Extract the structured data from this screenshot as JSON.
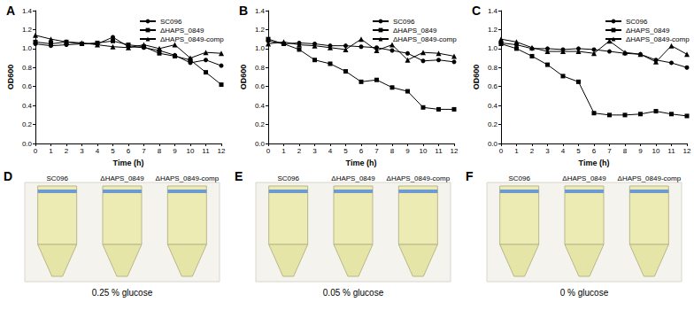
{
  "chart_data": [
    {
      "type": "line",
      "title": "A",
      "xlabel": "Time (h)",
      "ylabel": "OD600",
      "x": [
        0,
        1,
        2,
        3,
        4,
        5,
        6,
        7,
        8,
        9,
        10,
        11,
        12
      ],
      "xlim": [
        0,
        12
      ],
      "xticks": [
        0,
        1,
        2,
        3,
        4,
        5,
        6,
        7,
        8,
        9,
        10,
        11,
        12
      ],
      "ylim": [
        0,
        1.4
      ],
      "yticks": [
        {
          "value": 0,
          "label": "0.0"
        },
        0.2,
        0.4,
        0.6,
        0.8,
        {
          "value": 1,
          "label": "1.0"
        },
        1.2,
        1.4
      ],
      "legend": "upper right",
      "series": [
        {
          "name": "SC096",
          "color": "#000000",
          "marker": "circle",
          "values": [
            1.05,
            1.03,
            1.04,
            1.05,
            1.05,
            1.12,
            1.02,
            1.01,
            0.98,
            0.93,
            0.85,
            0.88,
            0.82
          ]
        },
        {
          "name": "ΔHAPS_0849",
          "color": "#000000",
          "marker": "square",
          "values": [
            1.07,
            1.05,
            1.07,
            1.05,
            1.06,
            1.08,
            1.04,
            1.02,
            0.95,
            0.92,
            0.88,
            0.75,
            0.62
          ]
        },
        {
          "name": "ΔHAPS_0849-comp",
          "color": "#000000",
          "marker": "triangle",
          "values": [
            1.14,
            1.1,
            1.07,
            1.06,
            1.04,
            1.02,
            1.01,
            1.04,
            1.0,
            1.04,
            0.9,
            0.96,
            0.95
          ]
        }
      ]
    },
    {
      "type": "line",
      "title": "B",
      "xlabel": "Time (h)",
      "ylabel": "OD600",
      "x": [
        0,
        1,
        2,
        3,
        4,
        5,
        6,
        7,
        8,
        9,
        10,
        11,
        12
      ],
      "xlim": [
        0,
        12
      ],
      "xticks": [
        0,
        1,
        2,
        3,
        4,
        5,
        6,
        7,
        8,
        9,
        10,
        11,
        12
      ],
      "ylim": [
        0,
        1.4
      ],
      "yticks": [
        {
          "value": 0,
          "label": "0.0"
        },
        0.2,
        0.4,
        0.6,
        0.8,
        {
          "value": 1,
          "label": "1.0"
        },
        1.2,
        1.4
      ],
      "legend": "upper right",
      "series": [
        {
          "name": "SC096",
          "color": "#000000",
          "marker": "circle",
          "values": [
            1.08,
            1.05,
            1.06,
            1.05,
            1.03,
            1.03,
            1.02,
            1.01,
            0.98,
            0.95,
            0.87,
            0.88,
            0.86
          ]
        },
        {
          "name": "ΔHAPS_0849",
          "color": "#000000",
          "marker": "square",
          "values": [
            1.1,
            1.05,
            0.99,
            0.88,
            0.84,
            0.76,
            0.65,
            0.67,
            0.59,
            0.55,
            0.38,
            0.36,
            0.36
          ]
        },
        {
          "name": "ΔHAPS_0849-comp",
          "color": "#000000",
          "marker": "triangle",
          "values": [
            1.05,
            1.07,
            1.04,
            1.03,
            1.01,
            0.99,
            1.1,
            0.98,
            1.04,
            0.88,
            0.96,
            0.95,
            0.92
          ]
        }
      ]
    },
    {
      "type": "line",
      "title": "C",
      "xlabel": "Time (h)",
      "ylabel": "OD600",
      "x": [
        0,
        1,
        2,
        3,
        4,
        5,
        6,
        7,
        8,
        9,
        10,
        11,
        12
      ],
      "xlim": [
        0,
        12
      ],
      "xticks": [
        0,
        1,
        2,
        3,
        4,
        5,
        6,
        7,
        8,
        9,
        10,
        11,
        12
      ],
      "ylim": [
        0,
        1.4
      ],
      "yticks": [
        {
          "value": 0,
          "label": "0.0"
        },
        0.2,
        0.4,
        0.6,
        0.8,
        {
          "value": 1,
          "label": "1.0"
        },
        1.2,
        1.4
      ],
      "legend": "upper right",
      "series": [
        {
          "name": "SC096",
          "color": "#000000",
          "marker": "circle",
          "values": [
            1.06,
            1.04,
            1.0,
            1.0,
            0.99,
            1.0,
            0.99,
            0.97,
            0.95,
            0.94,
            0.88,
            0.85,
            0.8
          ]
        },
        {
          "name": "ΔHAPS_0849",
          "color": "#000000",
          "marker": "square",
          "values": [
            1.05,
            1.0,
            0.92,
            0.83,
            0.71,
            0.65,
            0.32,
            0.3,
            0.3,
            0.31,
            0.34,
            0.31,
            0.29
          ]
        },
        {
          "name": "ΔHAPS_0849-comp",
          "color": "#000000",
          "marker": "triangle",
          "values": [
            1.1,
            1.07,
            1.01,
            0.97,
            0.97,
            0.97,
            0.95,
            1.08,
            0.96,
            0.94,
            0.86,
            1.03,
            0.94
          ]
        }
      ]
    }
  ],
  "photo_panels": [
    {
      "label": "D",
      "tubes": [
        "SC096",
        "ΔHAPS_0849",
        "ΔHAPS_0849-comp"
      ],
      "caption": "0.25 % glucose"
    },
    {
      "label": "E",
      "tubes": [
        "SC096",
        "ΔHAPS_0849",
        "ΔHAPS_0849-comp"
      ],
      "caption": "0.05 % glucose"
    },
    {
      "label": "F",
      "tubes": [
        "SC096",
        "ΔHAPS_0849",
        "ΔHAPS_0849-comp"
      ],
      "caption": "0 % glucose"
    }
  ]
}
